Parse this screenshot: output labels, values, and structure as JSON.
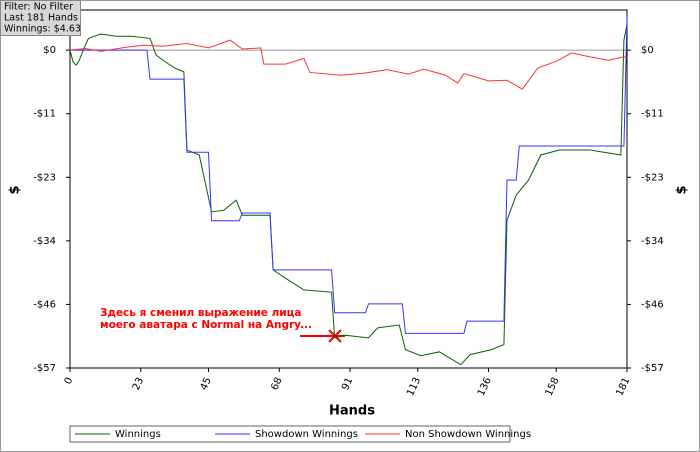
{
  "chart_data": {
    "type": "line",
    "info": [
      "Filter: No Filter",
      "Last  181 Hands",
      "Winnings: $4.63"
    ],
    "x_label": "Hands",
    "y_label": "$",
    "annotation": [
      "Здесь я сменил выражение лица",
      "моего аватара с Normal на Angry..."
    ],
    "xlim": [
      0,
      181
    ],
    "xticks": [
      0,
      23,
      45,
      68,
      91,
      113,
      136,
      158,
      181
    ],
    "ylim": [
      -57,
      7.2
    ],
    "yticks": [
      {
        "value": 0,
        "label": "$0"
      },
      {
        "value": -11.4,
        "label": "-$11"
      },
      {
        "value": -22.8,
        "label": "-$23"
      },
      {
        "value": -34.2,
        "label": "-$34"
      },
      {
        "value": -45.6,
        "label": "-$46"
      },
      {
        "value": -57,
        "label": "-$57"
      }
    ],
    "series": [
      {
        "name": "Winnings",
        "color": "#006400",
        "x": [
          0,
          1,
          2,
          3,
          5,
          6,
          10,
          15,
          20,
          26,
          28,
          31,
          34,
          37,
          38,
          42,
          46,
          50,
          54,
          56,
          65,
          66,
          70,
          76,
          85,
          86,
          89,
          97,
          100,
          107,
          109,
          114,
          120,
          127,
          130,
          137,
          141,
          142,
          145,
          149,
          153,
          159,
          169,
          179,
          180,
          181
        ],
        "values": [
          0,
          -2.1,
          -2.7,
          -1.8,
          0.9,
          2.1,
          2.9,
          2.5,
          2.5,
          2.1,
          -0.9,
          -2.1,
          -3.2,
          -3.9,
          -17.9,
          -18.8,
          -29.0,
          -28.7,
          -26.9,
          -29.6,
          -29.6,
          -39.4,
          -40.9,
          -43.0,
          -43.4,
          -51.6,
          -51.1,
          -51.6,
          -49.8,
          -49.3,
          -53.7,
          -54.8,
          -54.1,
          -56.4,
          -54.6,
          -53.7,
          -52.8,
          -30.5,
          -26.0,
          -23.3,
          -18.8,
          -17.9,
          -17.9,
          -18.8,
          1.8,
          4.63
        ]
      },
      {
        "name": "Showdown Winnings",
        "color": "#3333ff",
        "x": [
          0,
          25,
          26,
          37,
          38,
          45,
          46,
          55,
          56,
          65,
          66,
          85,
          86,
          96,
          97,
          108,
          109,
          128,
          129,
          141,
          142,
          145,
          146,
          180,
          181
        ],
        "values": [
          0,
          0,
          -5.2,
          -5.2,
          -18.3,
          -18.3,
          -30.6,
          -30.6,
          -29.2,
          -29.2,
          -39.4,
          -39.4,
          -47.1,
          -47.1,
          -45.5,
          -45.5,
          -50.8,
          -50.8,
          -48.6,
          -48.6,
          -23.3,
          -23.3,
          -17.2,
          -17.2,
          6.0
        ]
      },
      {
        "name": "Non Showdown Winnings",
        "color": "#ff3333",
        "x": [
          0,
          5,
          10,
          18,
          24,
          30,
          38,
          45,
          52,
          56,
          62,
          63,
          70,
          76,
          78,
          88,
          96,
          103,
          110,
          115,
          122,
          126,
          128,
          136,
          142,
          147,
          152,
          158,
          163,
          168,
          175,
          180,
          181
        ],
        "values": [
          0,
          0.3,
          -0.2,
          0.5,
          0.9,
          0.7,
          1.2,
          0.4,
          1.8,
          0.2,
          0.4,
          -2.5,
          -2.5,
          -1.5,
          -4.0,
          -4.5,
          -4.1,
          -3.5,
          -4.3,
          -3.4,
          -4.5,
          -5.9,
          -4.2,
          -5.5,
          -5.4,
          -7.0,
          -3.2,
          -2.0,
          -0.5,
          -1.1,
          -1.8,
          -1.2,
          -1.4
        ]
      }
    ]
  }
}
